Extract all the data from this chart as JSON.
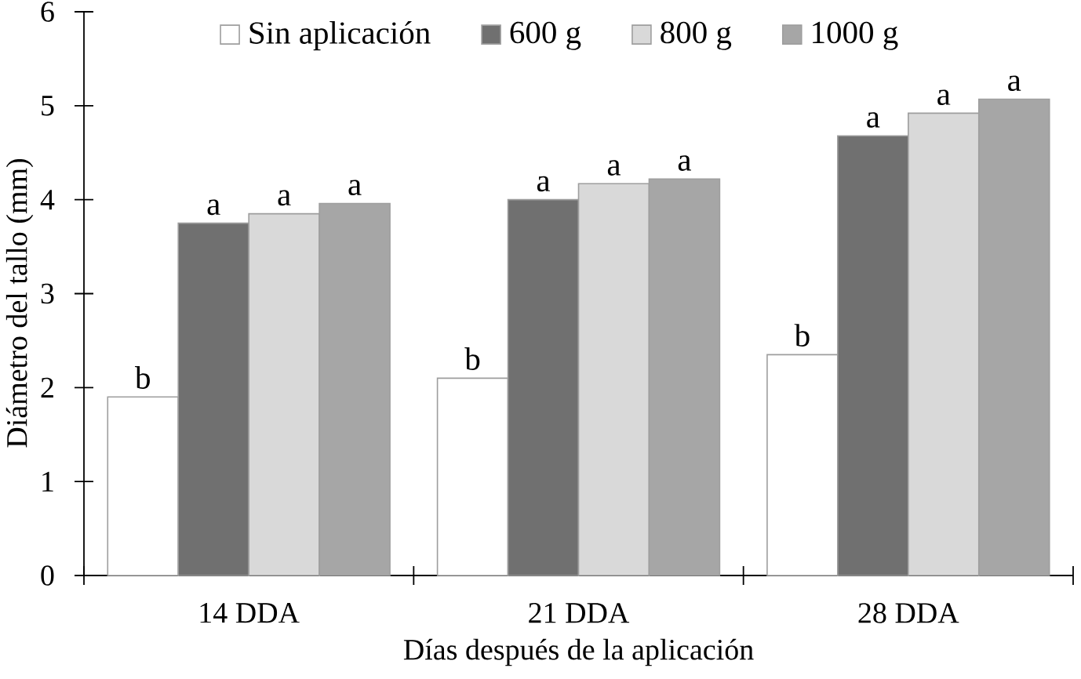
{
  "chart_data": {
    "type": "bar",
    "xlabel": "Días después de la aplicación",
    "ylabel": "Diámetro del tallo (mm)",
    "categories": [
      "14 DDA",
      "21 DDA",
      "28 DDA"
    ],
    "series": [
      {
        "name": "Sin aplicación",
        "color": "#ffffff",
        "values": [
          1.9,
          2.1,
          2.35
        ],
        "value_labels": [
          "b",
          "b",
          "b"
        ]
      },
      {
        "name": "600 g",
        "color": "#707070",
        "values": [
          3.75,
          4.0,
          4.68
        ],
        "value_labels": [
          "a",
          "a",
          "a"
        ]
      },
      {
        "name": "800 g",
        "color": "#d9d9d9",
        "values": [
          3.85,
          4.17,
          4.92
        ],
        "value_labels": [
          "a",
          "a",
          "a"
        ]
      },
      {
        "name": "1000 g",
        "color": "#a6a6a6",
        "values": [
          3.96,
          4.22,
          5.07
        ],
        "value_labels": [
          "a",
          "a",
          "a"
        ]
      }
    ],
    "ylim": [
      0,
      6
    ],
    "yticks": [
      0,
      1,
      2,
      3,
      4,
      5,
      6
    ],
    "legend": "top"
  }
}
